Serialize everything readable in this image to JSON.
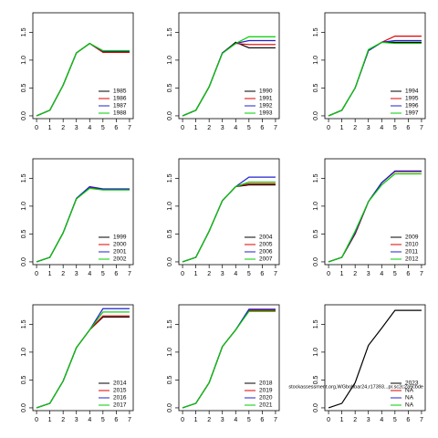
{
  "chart_data": [
    {
      "type": "line",
      "x": [
        0,
        1,
        2,
        3,
        4,
        5,
        6,
        7
      ],
      "xlim": [
        -0.28,
        7.28
      ],
      "ylim": [
        -0.05,
        1.85
      ],
      "xticks": [
        0,
        1,
        2,
        3,
        4,
        5,
        6,
        7
      ],
      "yticks": [
        {
          "value": 0,
          "label": "0.0"
        },
        0.5,
        {
          "value": 1,
          "label": "1.0"
        },
        1.5
      ],
      "series": [
        {
          "name": "1985",
          "color": "#000000",
          "values": [
            0,
            0.1,
            0.55,
            1.13,
            1.3,
            1.15,
            1.15,
            1.15
          ]
        },
        {
          "name": "1986",
          "color": "#df0000",
          "values": [
            0,
            0.1,
            0.55,
            1.13,
            1.3,
            1.14,
            1.14,
            1.14
          ]
        },
        {
          "name": "1987",
          "color": "#2020d0",
          "values": [
            0,
            0.1,
            0.55,
            1.13,
            1.3,
            1.16,
            1.16,
            1.16
          ]
        },
        {
          "name": "1988",
          "color": "#00cc00",
          "values": [
            0,
            0.1,
            0.55,
            1.13,
            1.3,
            1.17,
            1.17,
            1.17
          ]
        }
      ]
    },
    {
      "type": "line",
      "x": [
        0,
        1,
        2,
        3,
        4,
        5,
        6,
        7
      ],
      "xlim": [
        -0.28,
        7.28
      ],
      "ylim": [
        -0.05,
        1.85
      ],
      "xticks": [
        0,
        1,
        2,
        3,
        4,
        5,
        6,
        7
      ],
      "yticks": [
        {
          "value": 0,
          "label": "0.0"
        },
        0.5,
        {
          "value": 1,
          "label": "1.0"
        },
        1.5
      ],
      "series": [
        {
          "name": "1990",
          "color": "#000000",
          "values": [
            0,
            0.1,
            0.52,
            1.13,
            1.32,
            1.22,
            1.22,
            1.22
          ]
        },
        {
          "name": "1991",
          "color": "#df0000",
          "values": [
            0,
            0.1,
            0.52,
            1.13,
            1.3,
            1.28,
            1.28,
            1.28
          ]
        },
        {
          "name": "1992",
          "color": "#2020d0",
          "values": [
            0,
            0.1,
            0.52,
            1.13,
            1.3,
            1.35,
            1.35,
            1.35
          ]
        },
        {
          "name": "1993",
          "color": "#00cc00",
          "values": [
            0,
            0.1,
            0.52,
            1.12,
            1.3,
            1.42,
            1.42,
            1.42
          ]
        }
      ]
    },
    {
      "type": "line",
      "x": [
        0,
        1,
        2,
        3,
        4,
        5,
        6,
        7
      ],
      "xlim": [
        -0.28,
        7.28
      ],
      "ylim": [
        -0.05,
        1.85
      ],
      "xticks": [
        0,
        1,
        2,
        3,
        4,
        5,
        6,
        7
      ],
      "yticks": [
        {
          "value": 0,
          "label": "0.0"
        },
        0.5,
        {
          "value": 1,
          "label": "1.0"
        },
        1.5
      ],
      "series": [
        {
          "name": "1994",
          "color": "#000000",
          "values": [
            0,
            0.1,
            0.5,
            1.17,
            1.32,
            1.32,
            1.32,
            1.32
          ]
        },
        {
          "name": "1995",
          "color": "#df0000",
          "values": [
            0,
            0.1,
            0.5,
            1.17,
            1.32,
            1.43,
            1.43,
            1.43
          ]
        },
        {
          "name": "1996",
          "color": "#2020d0",
          "values": [
            0,
            0.1,
            0.5,
            1.17,
            1.32,
            1.35,
            1.35,
            1.35
          ]
        },
        {
          "name": "1997",
          "color": "#00cc00",
          "values": [
            0,
            0.1,
            0.5,
            1.19,
            1.32,
            1.3,
            1.3,
            1.3
          ]
        }
      ]
    },
    {
      "type": "line",
      "x": [
        0,
        1,
        2,
        3,
        4,
        5,
        6,
        7
      ],
      "xlim": [
        -0.28,
        7.28
      ],
      "ylim": [
        -0.05,
        1.85
      ],
      "xticks": [
        0,
        1,
        2,
        3,
        4,
        5,
        6,
        7
      ],
      "yticks": [
        {
          "value": 0,
          "label": "0.0"
        },
        0.5,
        {
          "value": 1,
          "label": "1.0"
        },
        1.5
      ],
      "series": [
        {
          "name": "1999",
          "color": "#000000",
          "values": [
            0,
            0.08,
            0.52,
            1.13,
            1.33,
            1.3,
            1.3,
            1.3
          ]
        },
        {
          "name": "2000",
          "color": "#df0000",
          "values": [
            0,
            0.08,
            0.52,
            1.13,
            1.33,
            1.3,
            1.3,
            1.3
          ]
        },
        {
          "name": "2001",
          "color": "#2020d0",
          "values": [
            0,
            0.08,
            0.52,
            1.14,
            1.35,
            1.31,
            1.31,
            1.31
          ]
        },
        {
          "name": "2002",
          "color": "#00cc00",
          "values": [
            0,
            0.08,
            0.52,
            1.13,
            1.32,
            1.29,
            1.29,
            1.29
          ]
        }
      ]
    },
    {
      "type": "line",
      "x": [
        0,
        1,
        2,
        3,
        4,
        5,
        6,
        7
      ],
      "xlim": [
        -0.28,
        7.28
      ],
      "ylim": [
        -0.05,
        1.85
      ],
      "xticks": [
        0,
        1,
        2,
        3,
        4,
        5,
        6,
        7
      ],
      "yticks": [
        {
          "value": 0,
          "label": "0.0"
        },
        0.5,
        {
          "value": 1,
          "label": "1.0"
        },
        1.5
      ],
      "series": [
        {
          "name": "2004",
          "color": "#000000",
          "values": [
            0,
            0.08,
            0.55,
            1.1,
            1.35,
            1.38,
            1.38,
            1.38
          ]
        },
        {
          "name": "2005",
          "color": "#df0000",
          "values": [
            0,
            0.08,
            0.55,
            1.1,
            1.35,
            1.4,
            1.4,
            1.4
          ]
        },
        {
          "name": "2006",
          "color": "#2020d0",
          "values": [
            0,
            0.08,
            0.55,
            1.1,
            1.35,
            1.52,
            1.52,
            1.52
          ]
        },
        {
          "name": "2007",
          "color": "#00cc00",
          "values": [
            0,
            0.08,
            0.55,
            1.1,
            1.35,
            1.43,
            1.43,
            1.43
          ]
        }
      ]
    },
    {
      "type": "line",
      "x": [
        0,
        1,
        2,
        3,
        4,
        5,
        6,
        7
      ],
      "xlim": [
        -0.28,
        7.28
      ],
      "ylim": [
        -0.05,
        1.85
      ],
      "xticks": [
        0,
        1,
        2,
        3,
        4,
        5,
        6,
        7
      ],
      "yticks": [
        {
          "value": 0,
          "label": "0.0"
        },
        0.5,
        {
          "value": 1,
          "label": "1.0"
        },
        1.5
      ],
      "series": [
        {
          "name": "2009",
          "color": "#000000",
          "values": [
            0,
            0.08,
            0.5,
            1.08,
            1.42,
            1.63,
            1.63,
            1.63
          ]
        },
        {
          "name": "2010",
          "color": "#df0000",
          "values": [
            0,
            0.08,
            0.5,
            1.08,
            1.42,
            1.62,
            1.62,
            1.62
          ]
        },
        {
          "name": "2011",
          "color": "#2020d0",
          "values": [
            0,
            0.08,
            0.52,
            1.08,
            1.42,
            1.63,
            1.63,
            1.63
          ]
        },
        {
          "name": "2012",
          "color": "#00cc00",
          "values": [
            0,
            0.08,
            0.55,
            1.08,
            1.38,
            1.58,
            1.58,
            1.58
          ]
        }
      ]
    },
    {
      "type": "line",
      "x": [
        0,
        1,
        2,
        3,
        4,
        5,
        6,
        7
      ],
      "xlim": [
        -0.28,
        7.28
      ],
      "ylim": [
        -0.05,
        1.85
      ],
      "xticks": [
        0,
        1,
        2,
        3,
        4,
        5,
        6,
        7
      ],
      "yticks": [
        {
          "value": 0,
          "label": "0.0"
        },
        0.5,
        {
          "value": 1,
          "label": "1.0"
        },
        1.5
      ],
      "series": [
        {
          "name": "2014",
          "color": "#000000",
          "values": [
            0,
            0.08,
            0.48,
            1.08,
            1.4,
            1.63,
            1.63,
            1.63
          ]
        },
        {
          "name": "2015",
          "color": "#df0000",
          "values": [
            0,
            0.08,
            0.48,
            1.08,
            1.4,
            1.65,
            1.65,
            1.65
          ]
        },
        {
          "name": "2016",
          "color": "#2020d0",
          "values": [
            0,
            0.08,
            0.48,
            1.08,
            1.4,
            1.78,
            1.78,
            1.78
          ]
        },
        {
          "name": "2017",
          "color": "#00cc00",
          "values": [
            0,
            0.08,
            0.48,
            1.08,
            1.4,
            1.72,
            1.72,
            1.72
          ]
        }
      ]
    },
    {
      "type": "line",
      "x": [
        0,
        1,
        2,
        3,
        4,
        5,
        6,
        7
      ],
      "xlim": [
        -0.28,
        7.28
      ],
      "ylim": [
        -0.05,
        1.85
      ],
      "xticks": [
        0,
        1,
        2,
        3,
        4,
        5,
        6,
        7
      ],
      "yticks": [
        {
          "value": 0,
          "label": "0.0"
        },
        0.5,
        {
          "value": 1,
          "label": "1.0"
        },
        1.5
      ],
      "series": [
        {
          "name": "2018",
          "color": "#000000",
          "values": [
            0,
            0.08,
            0.45,
            1.1,
            1.4,
            1.75,
            1.75,
            1.75
          ]
        },
        {
          "name": "2019",
          "color": "#df0000",
          "values": [
            0,
            0.08,
            0.45,
            1.1,
            1.4,
            1.75,
            1.75,
            1.75
          ]
        },
        {
          "name": "2020",
          "color": "#2020d0",
          "values": [
            0,
            0.08,
            0.45,
            1.1,
            1.4,
            1.77,
            1.77,
            1.77
          ]
        },
        {
          "name": "2021",
          "color": "#00cc00",
          "values": [
            0,
            0.08,
            0.45,
            1.1,
            1.4,
            1.73,
            1.73,
            1.73
          ]
        }
      ]
    },
    {
      "type": "line",
      "x": [
        0,
        1,
        2,
        3,
        4,
        5,
        6,
        7
      ],
      "xlim": [
        -0.28,
        7.28
      ],
      "ylim": [
        -0.05,
        1.85
      ],
      "xticks": [
        0,
        1,
        2,
        3,
        4,
        5,
        6,
        7
      ],
      "yticks": [
        {
          "value": 0,
          "label": "0.0"
        },
        0.5,
        {
          "value": 1,
          "label": "1.0"
        },
        1.5
      ],
      "annotation": "stockassessment.org,WGbobbar24,r17393...pr.sc2c2a9cbde",
      "series": [
        {
          "name": "2023",
          "color": "#000000",
          "values": [
            0,
            0.08,
            0.45,
            1.12,
            1.43,
            1.75,
            1.75,
            1.75
          ]
        },
        {
          "name": "NA",
          "color": "#df0000",
          "values": [
            null,
            null,
            null,
            null,
            null,
            null,
            null,
            null
          ]
        },
        {
          "name": "NA",
          "color": "#2020d0",
          "values": [
            null,
            null,
            null,
            null,
            null,
            null,
            null,
            null
          ]
        },
        {
          "name": "NA",
          "color": "#00cc00",
          "values": [
            null,
            null,
            null,
            null,
            null,
            null,
            null,
            null
          ]
        }
      ]
    }
  ]
}
